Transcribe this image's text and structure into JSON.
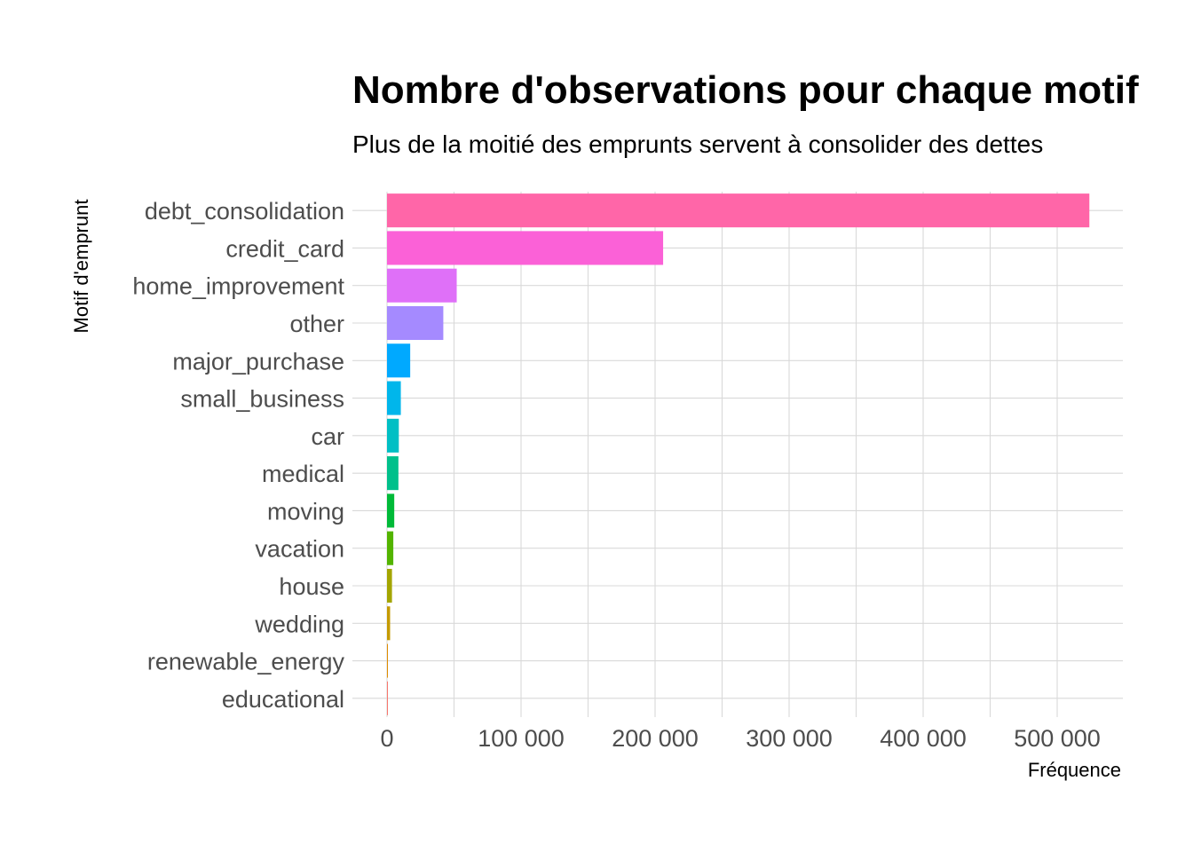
{
  "chart_data": {
    "type": "bar",
    "orientation": "horizontal",
    "title": "Nombre d'observations pour chaque motif",
    "subtitle": "Plus de la moitié des emprunts servent à consolider des dettes",
    "xlabel": "Fréquence",
    "ylabel": "Motif d'emprunt",
    "xlim": [
      0,
      550000
    ],
    "xticks": [
      0,
      100000,
      200000,
      300000,
      400000,
      500000
    ],
    "xtick_labels": [
      "0",
      "100 000",
      "200 000",
      "300 000",
      "400 000",
      "500 000"
    ],
    "grid": true,
    "legend": "none",
    "categories": [
      "debt_consolidation",
      "credit_card",
      "home_improvement",
      "other",
      "major_purchase",
      "small_business",
      "car",
      "medical",
      "moving",
      "vacation",
      "house",
      "wedding",
      "renewable_energy",
      "educational"
    ],
    "values": [
      524000,
      206000,
      52000,
      42000,
      17300,
      10300,
      8800,
      8500,
      5400,
      4700,
      3700,
      2300,
      575,
      420
    ],
    "colors": [
      "#FF66A8",
      "#FB61D7",
      "#DF70F8",
      "#A58AFF",
      "#00A9FF",
      "#00B6EB",
      "#00BFC4",
      "#00C08B",
      "#00BA38",
      "#53B400",
      "#A3A500",
      "#C49A00",
      "#DE8C00",
      "#F8766D"
    ]
  }
}
